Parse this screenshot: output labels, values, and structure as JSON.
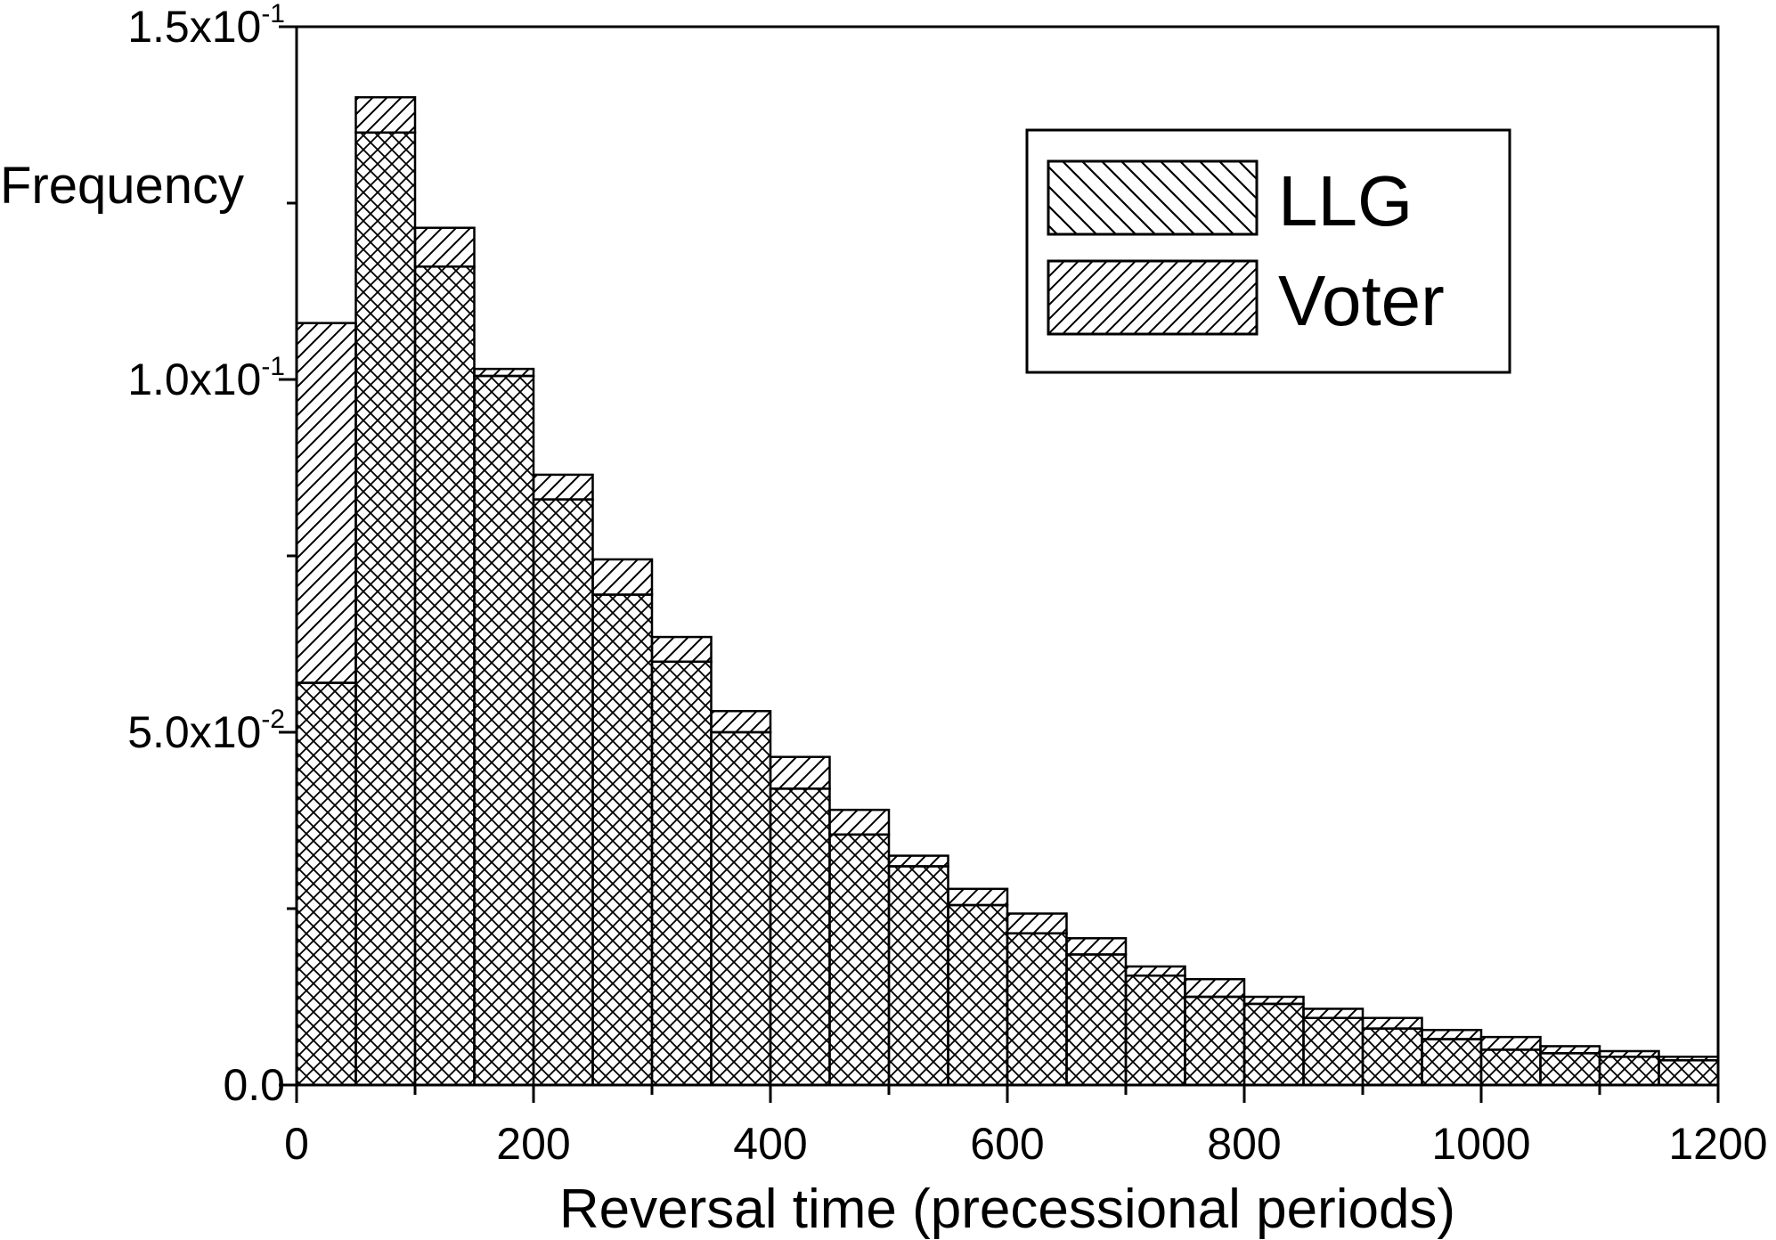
{
  "chart_data": {
    "type": "bar",
    "title": "",
    "xlabel": "Reversal time (precessional periods)",
    "ylabel": "Frequency",
    "xlim": [
      0,
      1200
    ],
    "ylim": [
      0,
      0.15
    ],
    "bin_width": 50,
    "x_ticks": [
      {
        "value": 0,
        "label": "0"
      },
      {
        "value": 200,
        "label": "200"
      },
      {
        "value": 400,
        "label": "400"
      },
      {
        "value": 600,
        "label": "600"
      },
      {
        "value": 800,
        "label": "800"
      },
      {
        "value": 1000,
        "label": "1000"
      },
      {
        "value": 1200,
        "label": "1200"
      }
    ],
    "y_ticks": [
      {
        "value": 0,
        "base": "0.0",
        "exp": ""
      },
      {
        "value": 0.05,
        "base": "5.0x10",
        "exp": "-2"
      },
      {
        "value": 0.1,
        "base": "1.0x10",
        "exp": "-1"
      },
      {
        "value": 0.15,
        "base": "1.5x10",
        "exp": "-1"
      }
    ],
    "legend": {
      "position": "top-right",
      "entries": [
        {
          "name": "LLG",
          "pattern": "backslash-hatch"
        },
        {
          "name": "Voter",
          "pattern": "slash-hatch"
        }
      ]
    },
    "bin_starts": [
      0,
      50,
      100,
      150,
      200,
      250,
      300,
      350,
      400,
      450,
      500,
      550,
      600,
      650,
      700,
      750,
      800,
      850,
      900,
      950,
      1000,
      1050,
      1100,
      1150
    ],
    "series": [
      {
        "name": "LLG",
        "values": [
          0.057,
          0.135,
          0.116,
          0.1005,
          0.083,
          0.0695,
          0.06,
          0.05,
          0.042,
          0.0355,
          0.031,
          0.0255,
          0.0215,
          0.0185,
          0.0155,
          0.0125,
          0.0115,
          0.0095,
          0.008,
          0.0065,
          0.005,
          0.0045,
          0.004,
          0.0035
        ]
      },
      {
        "name": "Voter",
        "values": [
          0.108,
          0.14,
          0.1215,
          0.1015,
          0.0865,
          0.0745,
          0.0635,
          0.053,
          0.0465,
          0.039,
          0.0325,
          0.0278,
          0.0243,
          0.0208,
          0.0168,
          0.015,
          0.0125,
          0.0108,
          0.0095,
          0.0078,
          0.0068,
          0.0055,
          0.0048,
          0.004
        ]
      }
    ]
  }
}
